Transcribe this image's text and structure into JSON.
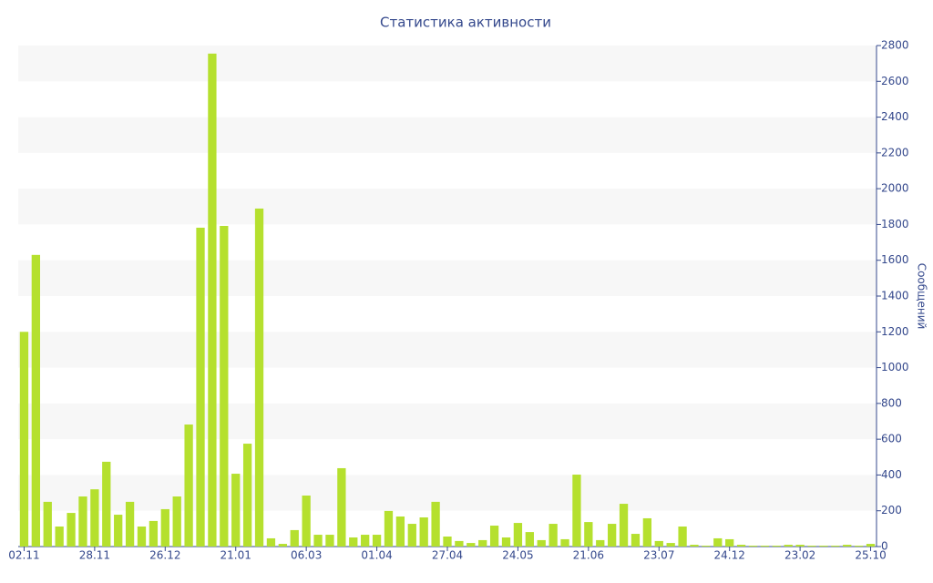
{
  "chart_data": {
    "type": "bar",
    "title": "Статистика активности",
    "y_label": "Сообщений",
    "categories": [
      "02.11",
      null,
      null,
      null,
      null,
      null,
      "28.11",
      null,
      null,
      null,
      null,
      null,
      "26.12",
      null,
      null,
      null,
      null,
      null,
      "21.01",
      null,
      null,
      null,
      null,
      null,
      "06.03",
      null,
      null,
      null,
      null,
      null,
      "01.04",
      null,
      null,
      null,
      null,
      null,
      "27.04",
      null,
      null,
      null,
      null,
      null,
      "24.05",
      null,
      null,
      null,
      null,
      null,
      "21.06",
      null,
      null,
      null,
      null,
      null,
      "23.07",
      null,
      null,
      null,
      null,
      null,
      "24.12",
      null,
      null,
      null,
      null,
      null,
      "23.02",
      null,
      null,
      null,
      null,
      null,
      "25.10"
    ],
    "values": [
      1200,
      1630,
      250,
      112,
      188,
      280,
      320,
      474,
      178,
      250,
      112,
      143,
      209,
      280,
      682,
      1782,
      2755,
      1792,
      407,
      575,
      1889,
      46,
      15,
      92,
      285,
      66,
      66,
      438,
      51,
      66,
      66,
      199,
      168,
      127,
      163,
      250,
      56,
      31,
      20,
      36,
      117,
      51,
      132,
      81,
      36,
      127,
      41,
      402,
      137,
      36,
      127,
      239,
      71,
      158,
      31,
      20,
      112,
      10,
      5,
      46,
      41,
      10,
      5,
      5,
      5,
      10,
      10,
      5,
      5,
      5,
      10,
      5,
      15
    ],
    "color": "#b5e02e",
    "ylim": [
      0,
      2800
    ],
    "yticks": [
      0,
      200,
      400,
      600,
      800,
      1000,
      1200,
      1400,
      1600,
      1800,
      2000,
      2200,
      2400,
      2600,
      2800
    ],
    "y_axis_side": "right",
    "grid": "bands"
  }
}
